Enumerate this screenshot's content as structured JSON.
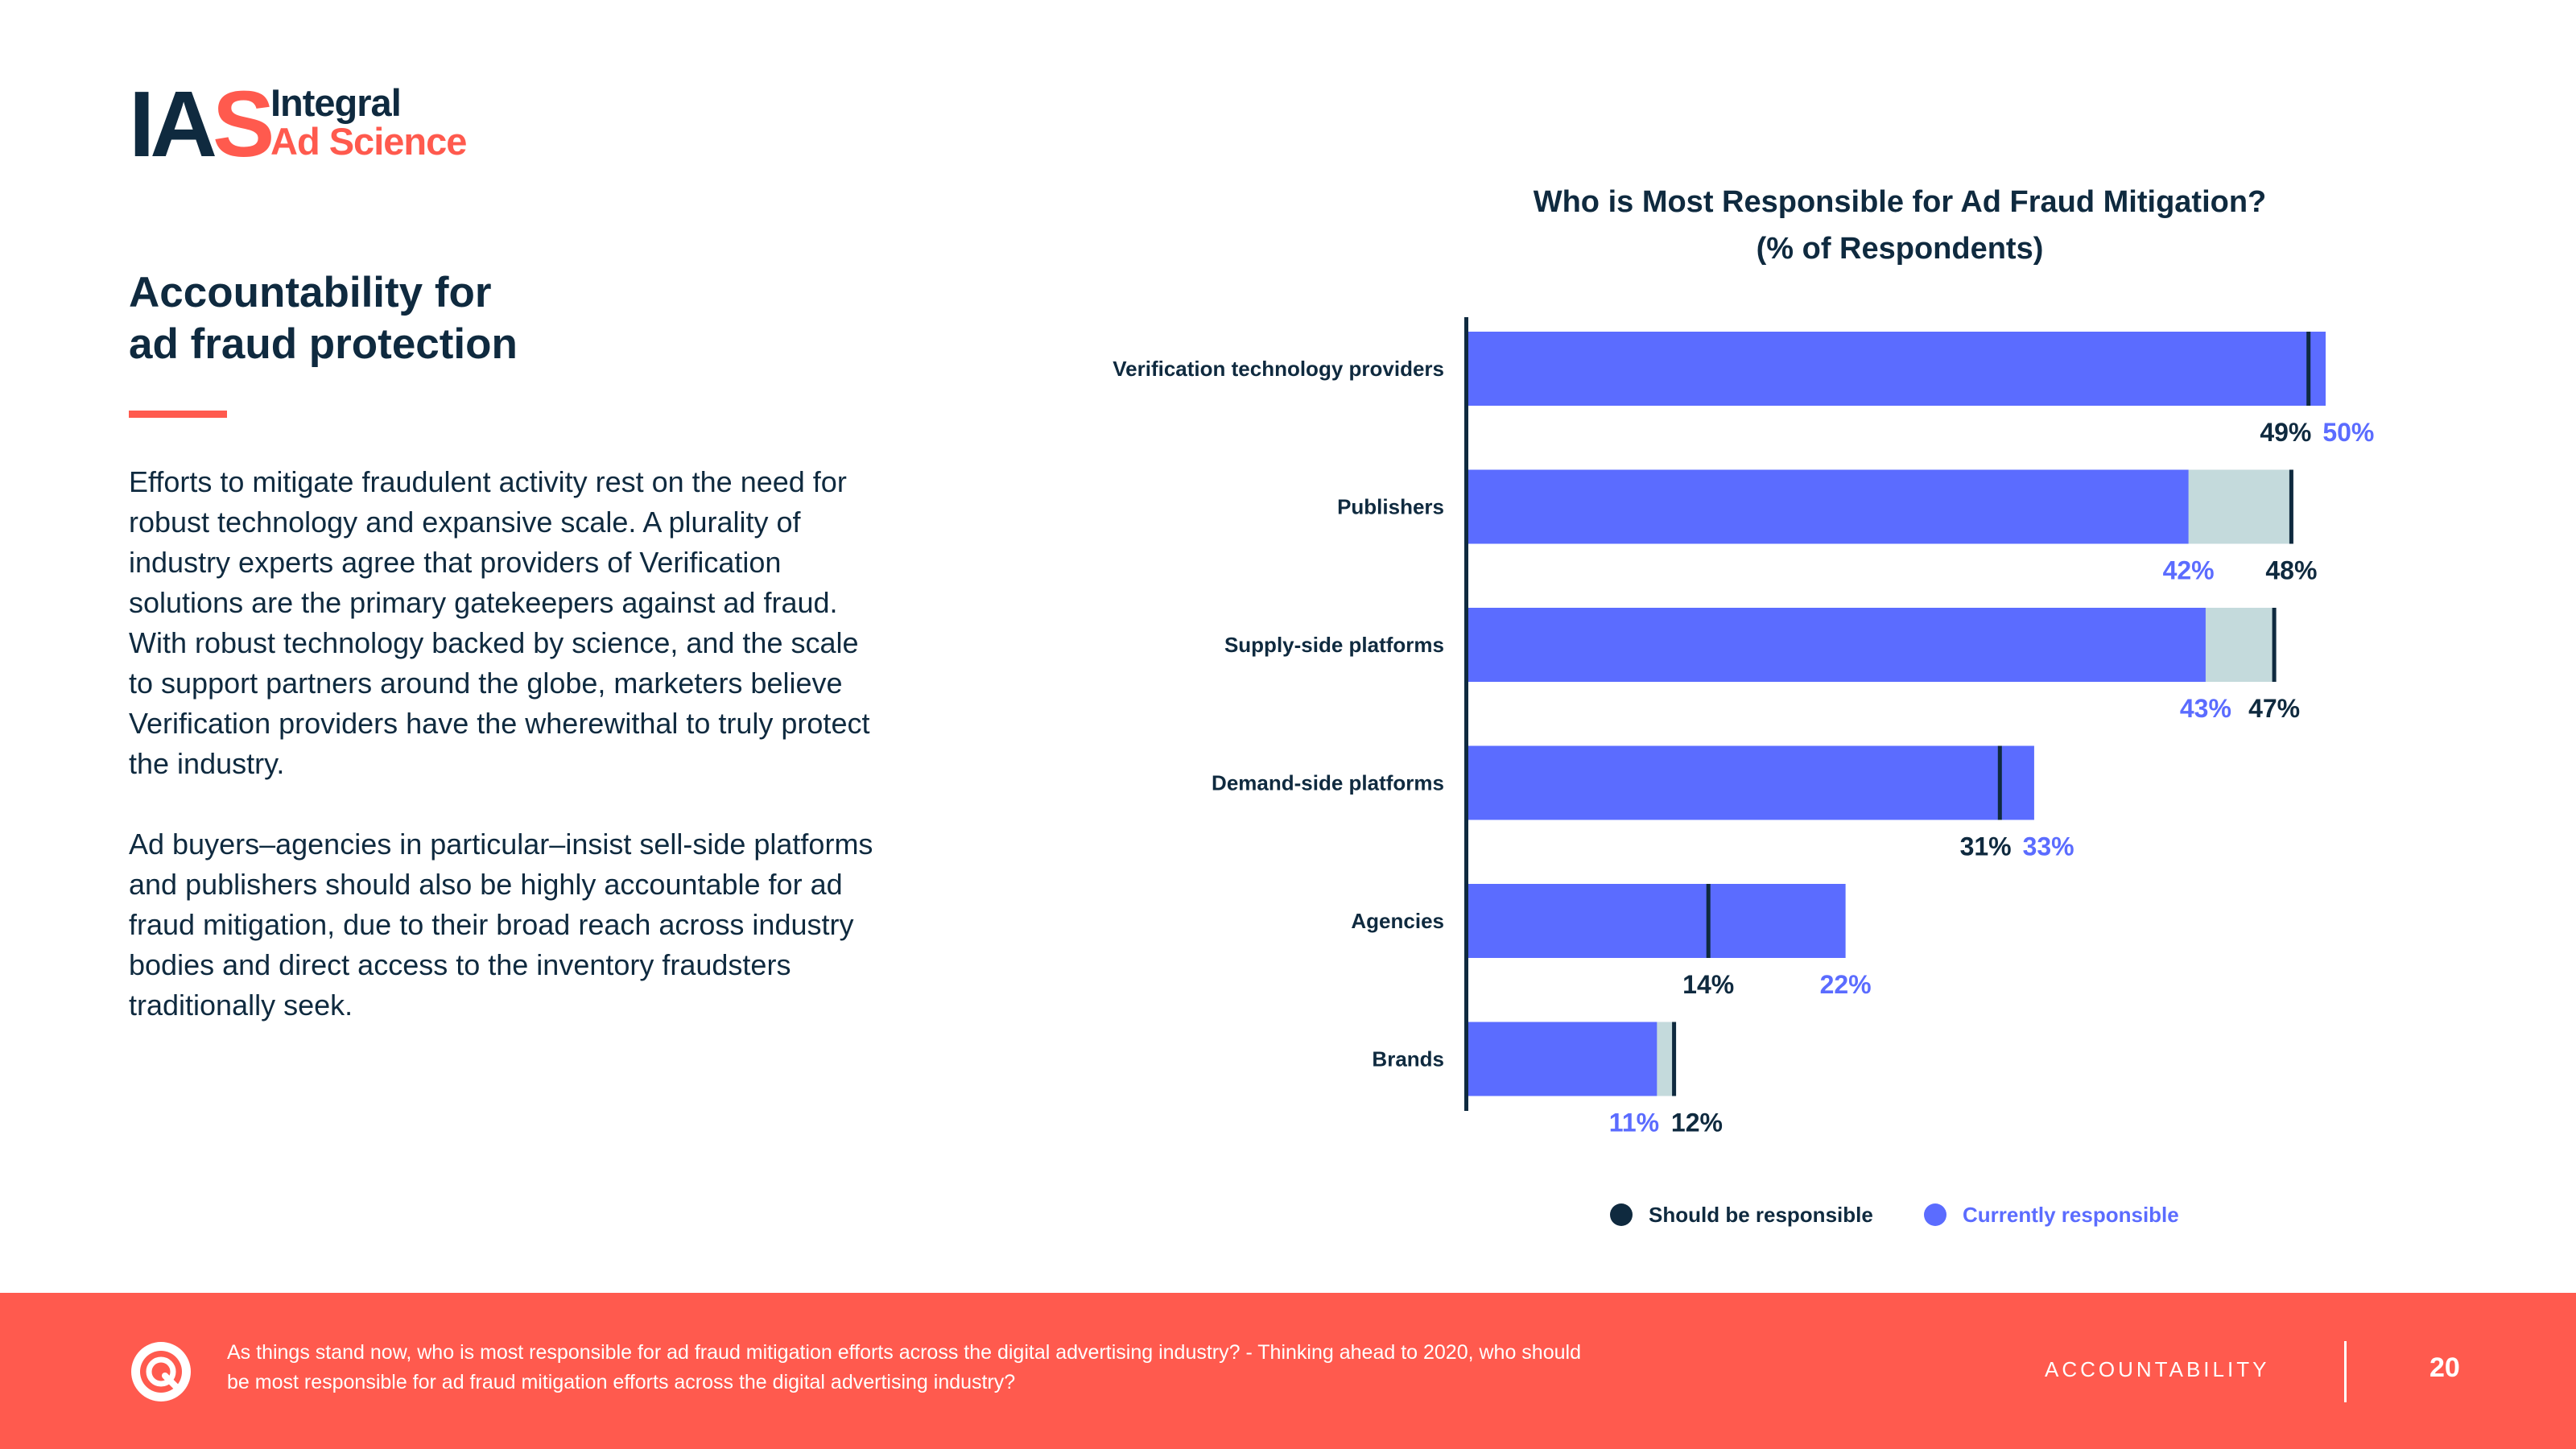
{
  "logo": {
    "mark_dark": "IA",
    "mark_red": "S",
    "line1": "Integral",
    "line2": "Ad Science"
  },
  "headline": {
    "line1": "Accountability for",
    "line2": "ad fraud protection"
  },
  "body": {
    "p1": "Efforts to mitigate fraudulent activity rest on the need for robust technology and expansive scale. A plurality of industry experts agree that providers of Verification solutions are the primary gatekeepers against ad fraud. With robust technology backed by science, and the scale to support partners around the globe, marketers believe Verification providers have the wherewithal to truly protect the industry.",
    "p2": "Ad buyers–agencies in particular–insist sell-side platforms and publishers should also be highly accountable for ad fraud mitigation, due to their broad reach across industry bodies and direct access to the inventory fraudsters traditionally seek."
  },
  "colors": {
    "navy": "#0f2a3f",
    "blue": "#5b6cff",
    "lightblue": "#c4dadc",
    "coral": "#ff5a4e"
  },
  "chart_data": {
    "type": "bar",
    "orientation": "horizontal",
    "title": "Who is Most Responsible for Ad Fraud Mitigation?",
    "subtitle": "(% of Respondents)",
    "categories": [
      "Verification technology providers",
      "Publishers",
      "Supply-side platforms",
      "Demand-side platforms",
      "Agencies",
      "Brands"
    ],
    "series": [
      {
        "name": "Should be responsible",
        "values": [
          49,
          48,
          47,
          31,
          14,
          12
        ],
        "labels": [
          "49%",
          "48%",
          "47%",
          "31%",
          "14%",
          "12%"
        ],
        "color": "#0f2a3f"
      },
      {
        "name": "Currently responsible",
        "values": [
          50,
          42,
          43,
          33,
          22,
          11
        ],
        "labels": [
          "50%",
          "42%",
          "43%",
          "33%",
          "22%",
          "11%"
        ],
        "color": "#5b6cff"
      }
    ],
    "xlim": [
      0,
      100
    ]
  },
  "footer": {
    "note": "As things stand now, who is most responsible for ad fraud mitigation efforts across the digital advertising industry? - Thinking ahead to 2020, who should be most responsible for ad fraud mitigation efforts across the digital advertising industry?",
    "section": "ACCOUNTABILITY",
    "page": "20"
  }
}
